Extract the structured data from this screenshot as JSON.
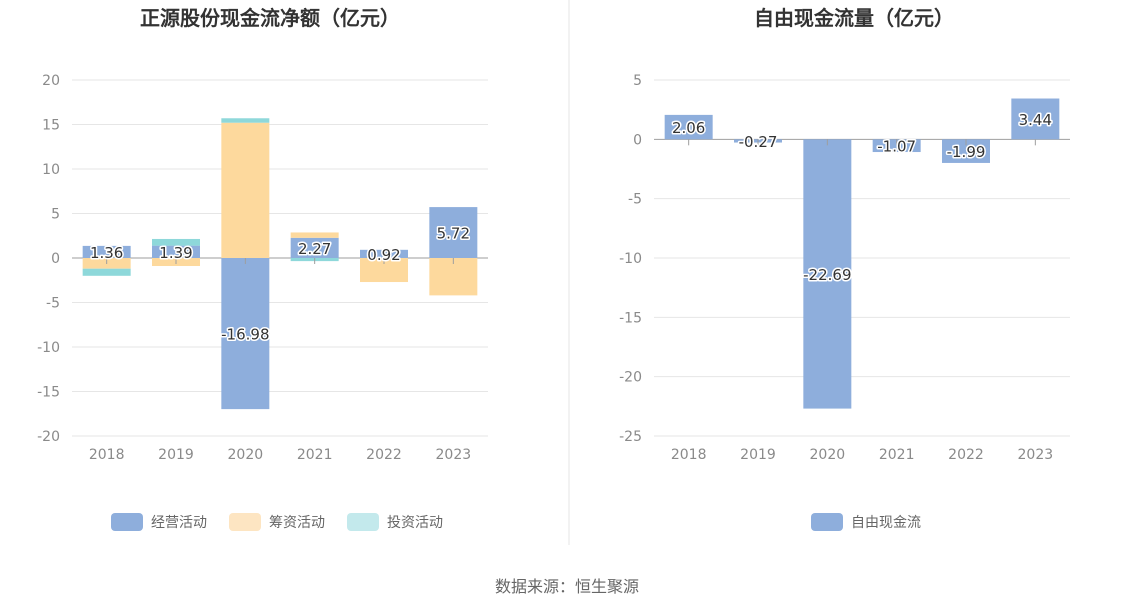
{
  "colors": {
    "operating": "#8eaedc",
    "financing": "#fdd99d",
    "investing": "#8ed8da",
    "financing_legend": "#fde5c2",
    "investing_legend": "#c3e9ec",
    "free_cash_flow": "#8eaedc"
  },
  "source": "数据来源：恒生聚源",
  "chart_data": [
    {
      "type": "bar",
      "stacked": true,
      "title": "正源股份现金流净额（亿元）",
      "categories": [
        "2018",
        "2019",
        "2020",
        "2021",
        "2022",
        "2023"
      ],
      "series": [
        {
          "name": "经营活动",
          "values": [
            1.36,
            1.39,
            -16.98,
            2.27,
            0.92,
            5.72
          ]
        },
        {
          "name": "筹资活动",
          "values": [
            -1.2,
            -0.9,
            15.2,
            0.6,
            -2.7,
            -4.2
          ]
        },
        {
          "name": "投资活动",
          "values": [
            -0.8,
            0.75,
            0.5,
            -0.35,
            0.0,
            0.0
          ]
        }
      ],
      "data_labels": [
        "1.36",
        "1.39",
        "-16.98",
        "2.27",
        "0.92",
        "5.72"
      ],
      "ylim": [
        -20,
        20
      ],
      "yticks": [
        20,
        15,
        10,
        5,
        0,
        -5,
        -10,
        -15,
        -20
      ],
      "legend_position": "bottom",
      "grid": true
    },
    {
      "type": "bar",
      "title": "自由现金流量（亿元）",
      "categories": [
        "2018",
        "2019",
        "2020",
        "2021",
        "2022",
        "2023"
      ],
      "series": [
        {
          "name": "自由现金流",
          "values": [
            2.06,
            -0.27,
            -22.69,
            -1.07,
            -1.99,
            3.44
          ]
        }
      ],
      "data_labels": [
        "2.06",
        "-0.27",
        "-22.69",
        "-1.07",
        "-1.99",
        "3.44"
      ],
      "ylim": [
        -25,
        5
      ],
      "yticks": [
        5,
        0,
        -5,
        -10,
        -15,
        -20,
        -25
      ],
      "legend_position": "bottom",
      "grid": true
    }
  ]
}
